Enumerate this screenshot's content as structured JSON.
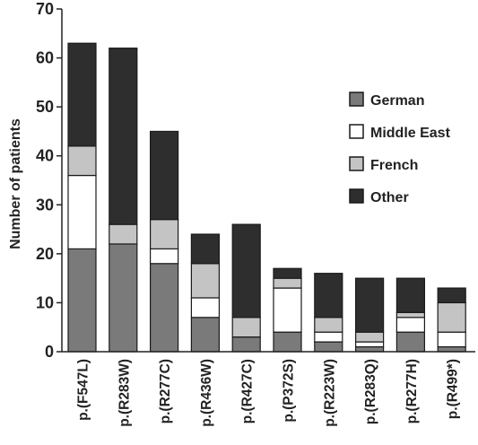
{
  "chart_data": {
    "type": "bar",
    "stacked": true,
    "title": "",
    "xlabel": "",
    "ylabel": "Number of patients",
    "ylim": [
      0,
      70
    ],
    "yticks": [
      0,
      10,
      20,
      30,
      40,
      50,
      60,
      70
    ],
    "grid": false,
    "legend_position": "right",
    "categories": [
      "p.(F547L)",
      "p.(R283W)",
      "p.(R277C)",
      "p.(R436W)",
      "p.(R427C)",
      "p.(P372S)",
      "p.(R223W)",
      "p.(R283Q)",
      "p.(R277H)",
      "p.(R499*)"
    ],
    "series": [
      {
        "name": "German",
        "color": "#7a7a7a",
        "values": [
          21,
          22,
          18,
          7,
          3,
          4,
          2,
          1,
          4,
          1
        ]
      },
      {
        "name": "Middle East",
        "color": "#ffffff",
        "values": [
          15,
          0,
          3,
          4,
          0,
          9,
          2,
          1,
          3,
          3
        ]
      },
      {
        "name": "French",
        "color": "#c4c4c4",
        "values": [
          6,
          4,
          6,
          7,
          4,
          2,
          3,
          2,
          1,
          6
        ]
      },
      {
        "name": "Other",
        "color": "#2e2e2e",
        "values": [
          21,
          36,
          18,
          6,
          19,
          2,
          9,
          11,
          7,
          3
        ]
      }
    ]
  }
}
